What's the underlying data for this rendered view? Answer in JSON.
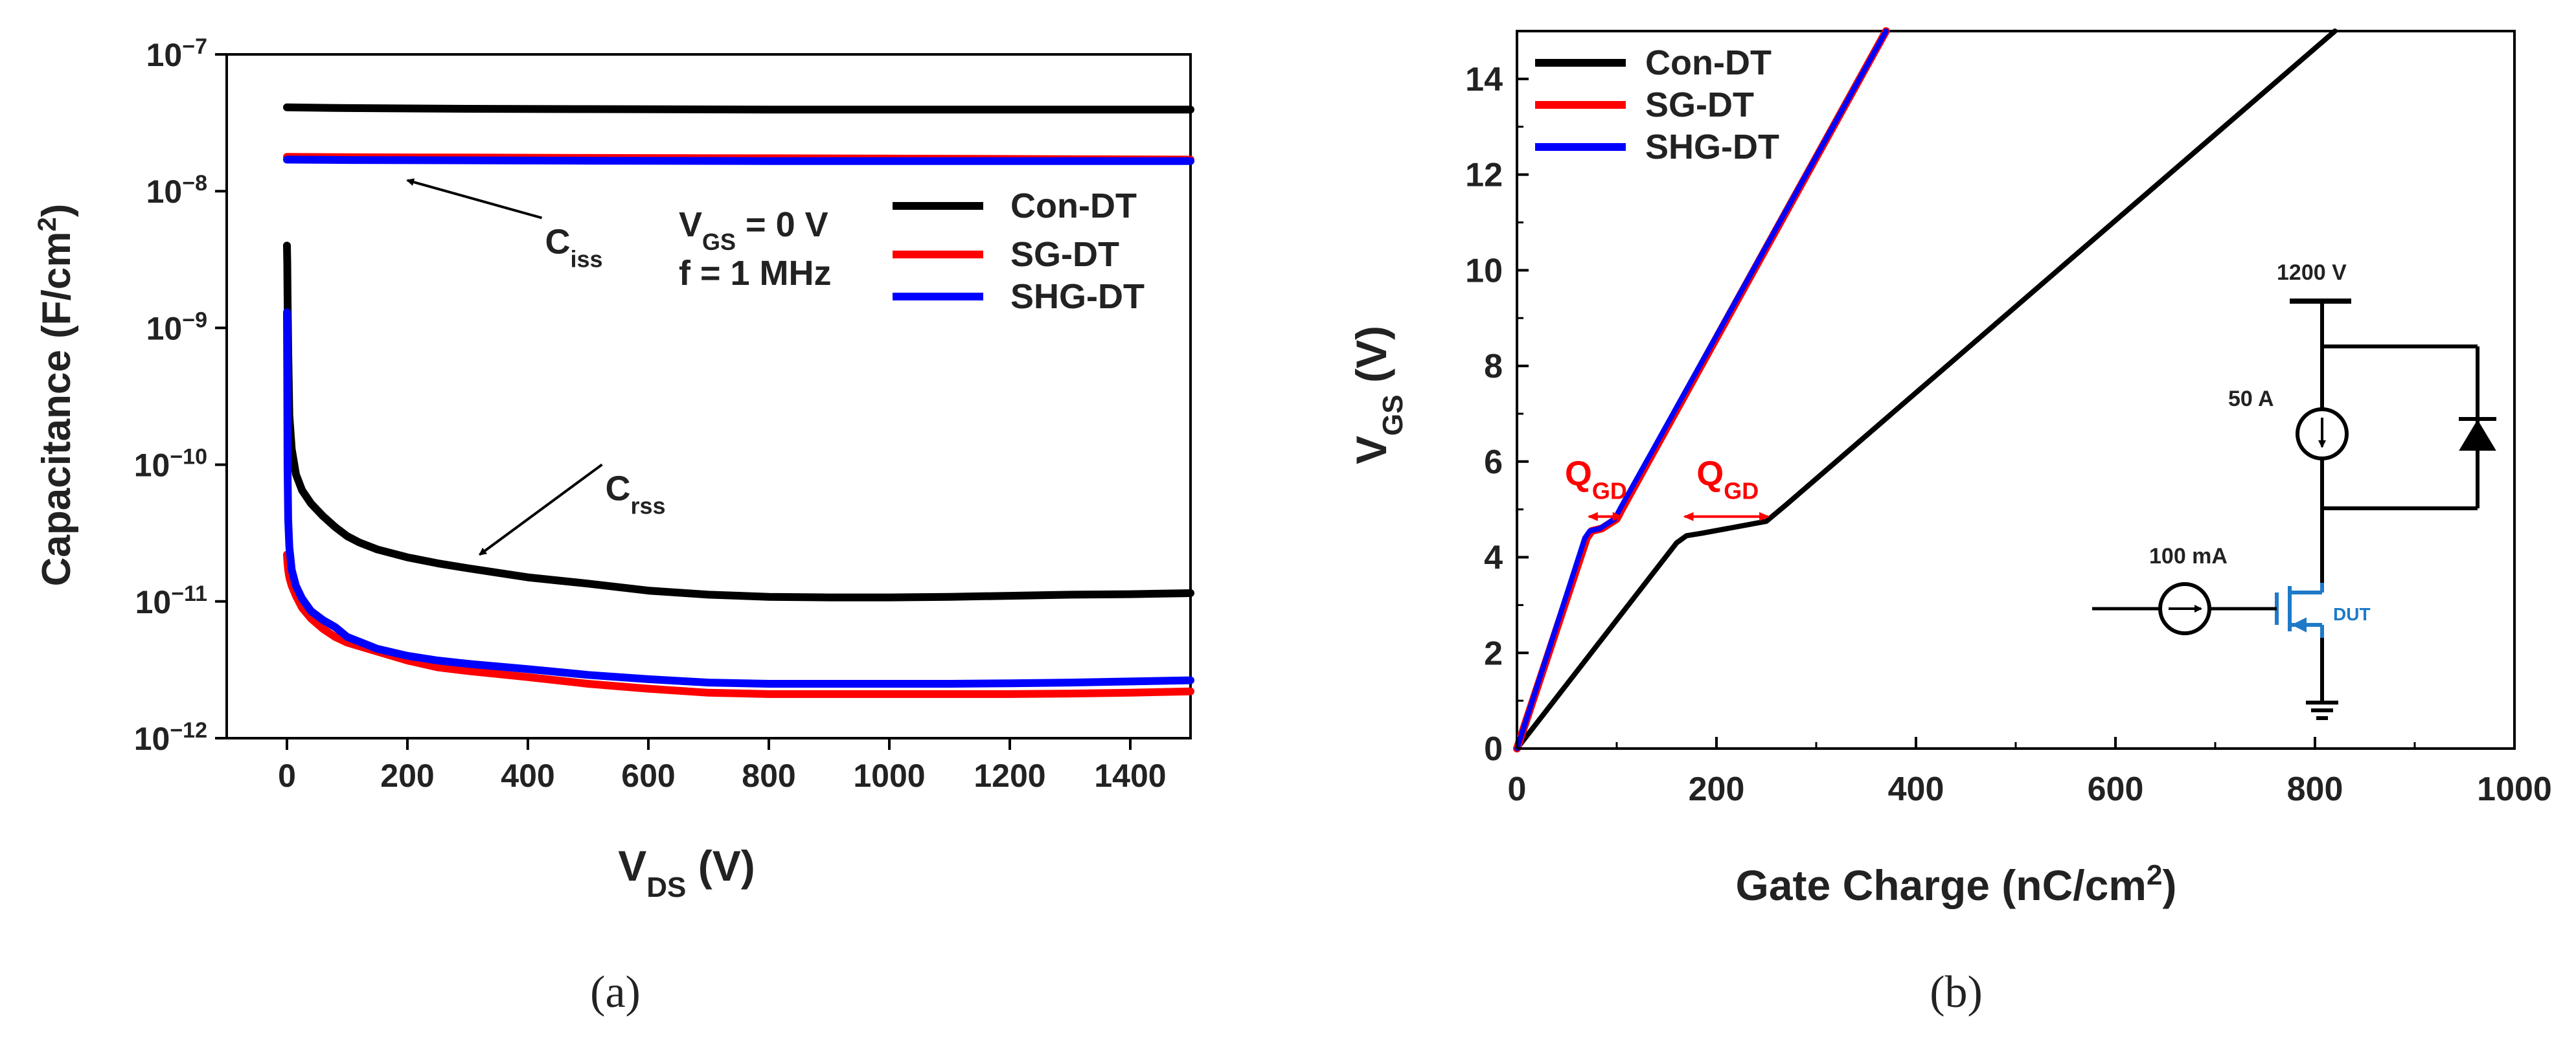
{
  "chart_data": [
    {
      "panel": "(a)",
      "type": "line",
      "xlabel": {
        "main": "V",
        "sub": "DS",
        "unit": " (V)"
      },
      "ylabel": {
        "main": "Capacitance (F/cm",
        "sup": "2",
        "tail": ")"
      },
      "y_scale": "log",
      "xlim": [
        -100,
        1500
      ],
      "ylim": [
        1e-12,
        1e-07
      ],
      "xticks": [
        0,
        200,
        400,
        600,
        800,
        1000,
        1200,
        1400
      ],
      "yticks": [
        {
          "value": 1e-07,
          "base": "10",
          "exp": "−7"
        },
        {
          "value": 1e-08,
          "base": "10",
          "exp": "−8"
        },
        {
          "value": 1e-09,
          "base": "10",
          "exp": "−9"
        },
        {
          "value": 1e-10,
          "base": "10",
          "exp": "−10"
        },
        {
          "value": 1e-11,
          "base": "10",
          "exp": "−11"
        },
        {
          "value": 1e-12,
          "base": "10",
          "exp": "−12"
        }
      ],
      "legend": {
        "placement": "center-right",
        "entries": [
          {
            "name": "Con-DT",
            "color": "#000000"
          },
          {
            "name": "SG-DT",
            "color": "#ff0000"
          },
          {
            "name": "SHG-DT",
            "color": "#0000ff"
          }
        ]
      },
      "conditions": [
        {
          "main": "V",
          "sub": "GS",
          "tail": " = 0 V"
        },
        {
          "main": "f = 1 MHz"
        }
      ],
      "annotations": [
        {
          "main": "C",
          "sub": "iss",
          "x": 450,
          "y": 3.5e-09,
          "arrow_to": [
            200,
            1.2e-08
          ]
        },
        {
          "main": "C",
          "sub": "rss",
          "x": 550,
          "y": 5.5e-11,
          "arrow_to": [
            320,
            2.2e-11
          ]
        }
      ],
      "series": [
        {
          "name": "Con-DT",
          "color": "#000000",
          "group": "Ciss",
          "x": [
            0,
            100,
            300,
            500,
            800,
            1000,
            1200,
            1500
          ],
          "y": [
            4.1e-08,
            4.05e-08,
            4e-08,
            3.98e-08,
            3.95e-08,
            3.95e-08,
            3.95e-08,
            3.95e-08
          ]
        },
        {
          "name": "SG-DT",
          "color": "#ff0000",
          "group": "Ciss",
          "x": [
            0,
            100,
            300,
            500,
            800,
            1000,
            1200,
            1500
          ],
          "y": [
            1.78e-08,
            1.77e-08,
            1.76e-08,
            1.75e-08,
            1.74e-08,
            1.73e-08,
            1.72e-08,
            1.7e-08
          ]
        },
        {
          "name": "SHG-DT",
          "color": "#0000ff",
          "group": "Ciss",
          "x": [
            0,
            100,
            300,
            500,
            800,
            1000,
            1200,
            1500
          ],
          "y": [
            1.7e-08,
            1.69e-08,
            1.68e-08,
            1.67e-08,
            1.66e-08,
            1.66e-08,
            1.66e-08,
            1.66e-08
          ]
        },
        {
          "name": "Con-DT",
          "color": "#000000",
          "group": "Crss",
          "x": [
            0,
            0.5,
            1,
            2,
            4,
            8,
            15,
            25,
            40,
            60,
            80,
            100,
            120,
            150,
            200,
            250,
            300,
            400,
            500,
            600,
            700,
            800,
            900,
            1000,
            1100,
            1200,
            1300,
            1400,
            1500
          ],
          "y": [
            4e-09,
            3e-09,
            1.8e-09,
            7e-10,
            2.3e-10,
            1.3e-10,
            8.5e-11,
            6.5e-11,
            5.2e-11,
            4.2e-11,
            3.5e-11,
            3e-11,
            2.7e-11,
            2.4e-11,
            2.1e-11,
            1.9e-11,
            1.75e-11,
            1.5e-11,
            1.35e-11,
            1.2e-11,
            1.12e-11,
            1.08e-11,
            1.07e-11,
            1.07e-11,
            1.08e-11,
            1.1e-11,
            1.12e-11,
            1.13e-11,
            1.15e-11
          ]
        },
        {
          "name": "SG-DT",
          "color": "#ff0000",
          "group": "Crss",
          "x": [
            0,
            1,
            2,
            4,
            8,
            15,
            25,
            40,
            60,
            80,
            100,
            150,
            200,
            250,
            300,
            400,
            500,
            600,
            700,
            800,
            900,
            1000,
            1100,
            1200,
            1300,
            1400,
            1500
          ],
          "y": [
            2.2e-11,
            1.9e-11,
            1.7e-11,
            1.5e-11,
            1.3e-11,
            1.1e-11,
            9e-12,
            7.5e-12,
            6.3e-12,
            5.5e-12,
            5e-12,
            4.3e-12,
            3.7e-12,
            3.3e-12,
            3.1e-12,
            2.8e-12,
            2.5e-12,
            2.3e-12,
            2.15e-12,
            2.1e-12,
            2.1e-12,
            2.1e-12,
            2.1e-12,
            2.1e-12,
            2.12e-12,
            2.15e-12,
            2.2e-12
          ]
        },
        {
          "name": "SHG-DT",
          "color": "#0000ff",
          "group": "Crss",
          "x": [
            0,
            0.5,
            1,
            2,
            4,
            8,
            15,
            25,
            40,
            60,
            80,
            100,
            150,
            200,
            250,
            300,
            400,
            500,
            600,
            700,
            800,
            900,
            1000,
            1100,
            1200,
            1300,
            1400,
            1500
          ],
          "y": [
            1.3e-09,
            4e-10,
            1e-10,
            4e-11,
            2.5e-11,
            1.7e-11,
            1.3e-11,
            1.05e-11,
            8.5e-12,
            7.3e-12,
            6.5e-12,
            5.5e-12,
            4.5e-12,
            4e-12,
            3.7e-12,
            3.5e-12,
            3.2e-12,
            2.9e-12,
            2.7e-12,
            2.55e-12,
            2.5e-12,
            2.5e-12,
            2.5e-12,
            2.5e-12,
            2.52e-12,
            2.55e-12,
            2.6e-12,
            2.65e-12
          ]
        }
      ]
    },
    {
      "panel": "(b)",
      "type": "line",
      "xlabel": {
        "main": "Gate Charge (nC/cm",
        "sup": "2",
        "tail": ")"
      },
      "ylabel": {
        "main": "V",
        "sub": "GS",
        "unit": " (V)"
      },
      "xlim": [
        0,
        1000
      ],
      "ylim": [
        0,
        15
      ],
      "xticks": [
        0,
        200,
        400,
        600,
        800,
        1000
      ],
      "yticks": [
        0,
        2,
        4,
        6,
        8,
        10,
        12,
        14
      ],
      "legend": {
        "placement": "top-left",
        "entries": [
          {
            "name": "Con-DT",
            "color": "#000000"
          },
          {
            "name": "SG-DT",
            "color": "#ff0000"
          },
          {
            "name": "SHG-DT",
            "color": "#0000ff"
          }
        ]
      },
      "annotations": [
        {
          "main": "Q",
          "sub": "GD",
          "color": "#ff0000",
          "x": 48,
          "y": 5.5,
          "arrow_from": [
            72,
            4.85
          ],
          "arrow_to": [
            105,
            4.85
          ]
        },
        {
          "main": "Q",
          "sub": "GD",
          "color": "#ff0000",
          "x": 180,
          "y": 5.5,
          "arrow_from": [
            168,
            4.85
          ],
          "arrow_to": [
            252,
            4.85
          ]
        }
      ],
      "circuit": {
        "supply_label": "1200 V",
        "load_current_label": "50 A",
        "gate_current_label": "100 mA",
        "dut_label": "DUT",
        "line_color": "#000000",
        "dut_color": "#1e7ac8"
      },
      "series": [
        {
          "name": "Con-DT",
          "color": "#000000",
          "x": [
            0,
            160,
            170,
            185,
            250,
            270,
            820
          ],
          "y": [
            0,
            4.3,
            4.45,
            4.5,
            4.75,
            5.1,
            15
          ]
        },
        {
          "name": "SG-DT",
          "color": "#ff0000",
          "x": [
            0,
            70,
            75,
            85,
            100,
            105,
            370
          ],
          "y": [
            0,
            4.4,
            4.55,
            4.6,
            4.8,
            5.0,
            15
          ]
        },
        {
          "name": "SHG-DT",
          "color": "#0000ff",
          "x": [
            0,
            68,
            73,
            83,
            98,
            103,
            370
          ],
          "y": [
            0,
            4.4,
            4.55,
            4.6,
            4.8,
            5.0,
            15
          ]
        }
      ]
    }
  ]
}
